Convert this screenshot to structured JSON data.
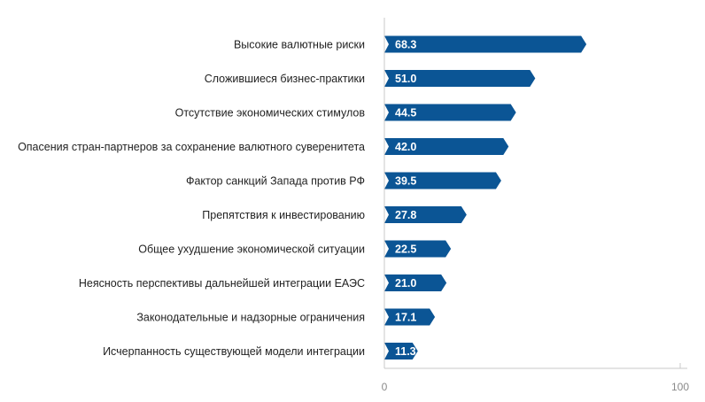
{
  "colors": {
    "bar": "#0b5595",
    "axis": "#c8c8c8",
    "text": "#222222",
    "tick_text": "#8a8a8a"
  },
  "chart_data": {
    "type": "bar",
    "orientation": "horizontal",
    "title": "",
    "xlabel": "",
    "ylabel": "",
    "xlim": [
      0,
      100
    ],
    "x_ticks": [
      "0",
      "100"
    ],
    "grid": false,
    "categories": [
      "Высокие валютные риски",
      "Сложившиеся бизнес-практики",
      "Отсутствие экономических стимулов",
      "Опасения стран-партнеров за сохранение валютного суверенитета",
      "Фактор санкций Запада против РФ",
      "Препятствия к инвестированию",
      "Общее ухудшение экономической ситуации",
      "Неясность перспективы дальнейшей интеграции ЕАЭС",
      "Законодательные и надзорные ограничения",
      "Исчерпанность существующей модели интеграции"
    ],
    "values": [
      68.3,
      51.0,
      44.5,
      42.0,
      39.5,
      27.8,
      22.5,
      21.0,
      17.1,
      11.3
    ],
    "value_labels": [
      "68.3",
      "51.0",
      "44.5",
      "42.0",
      "39.5",
      "27.8",
      "22.5",
      "21.0",
      "17.1",
      "11.3"
    ]
  }
}
